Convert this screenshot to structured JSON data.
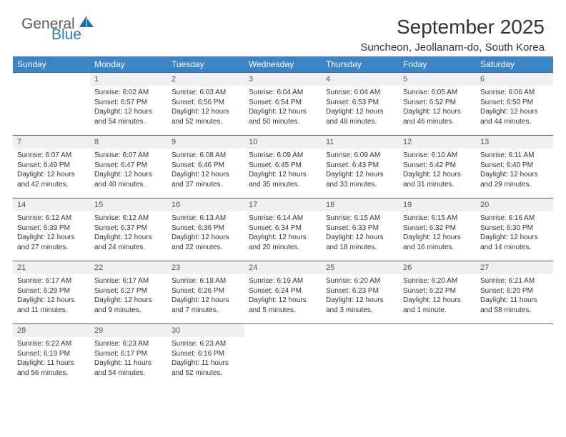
{
  "brand": {
    "word1": "General",
    "word2": "Blue"
  },
  "title": "September 2025",
  "location": "Suncheon, Jeollanam-do, South Korea",
  "colors": {
    "header_bg": "#3d84c6",
    "header_text": "#ffffff",
    "daynum_bg": "#eef0f1",
    "row_border": "#2e6ca4",
    "text": "#333333",
    "brand_gray": "#5a5a5a",
    "brand_blue": "#2f7bbf"
  },
  "weekdays": [
    "Sunday",
    "Monday",
    "Tuesday",
    "Wednesday",
    "Thursday",
    "Friday",
    "Saturday"
  ],
  "weeks": [
    [
      {
        "n": "",
        "sr": "",
        "ss": "",
        "dl": ""
      },
      {
        "n": "1",
        "sr": "Sunrise: 6:02 AM",
        "ss": "Sunset: 6:57 PM",
        "dl": "Daylight: 12 hours and 54 minutes."
      },
      {
        "n": "2",
        "sr": "Sunrise: 6:03 AM",
        "ss": "Sunset: 6:56 PM",
        "dl": "Daylight: 12 hours and 52 minutes."
      },
      {
        "n": "3",
        "sr": "Sunrise: 6:04 AM",
        "ss": "Sunset: 6:54 PM",
        "dl": "Daylight: 12 hours and 50 minutes."
      },
      {
        "n": "4",
        "sr": "Sunrise: 6:04 AM",
        "ss": "Sunset: 6:53 PM",
        "dl": "Daylight: 12 hours and 48 minutes."
      },
      {
        "n": "5",
        "sr": "Sunrise: 6:05 AM",
        "ss": "Sunset: 6:52 PM",
        "dl": "Daylight: 12 hours and 46 minutes."
      },
      {
        "n": "6",
        "sr": "Sunrise: 6:06 AM",
        "ss": "Sunset: 6:50 PM",
        "dl": "Daylight: 12 hours and 44 minutes."
      }
    ],
    [
      {
        "n": "7",
        "sr": "Sunrise: 6:07 AM",
        "ss": "Sunset: 6:49 PM",
        "dl": "Daylight: 12 hours and 42 minutes."
      },
      {
        "n": "8",
        "sr": "Sunrise: 6:07 AM",
        "ss": "Sunset: 6:47 PM",
        "dl": "Daylight: 12 hours and 40 minutes."
      },
      {
        "n": "9",
        "sr": "Sunrise: 6:08 AM",
        "ss": "Sunset: 6:46 PM",
        "dl": "Daylight: 12 hours and 37 minutes."
      },
      {
        "n": "10",
        "sr": "Sunrise: 6:09 AM",
        "ss": "Sunset: 6:45 PM",
        "dl": "Daylight: 12 hours and 35 minutes."
      },
      {
        "n": "11",
        "sr": "Sunrise: 6:09 AM",
        "ss": "Sunset: 6:43 PM",
        "dl": "Daylight: 12 hours and 33 minutes."
      },
      {
        "n": "12",
        "sr": "Sunrise: 6:10 AM",
        "ss": "Sunset: 6:42 PM",
        "dl": "Daylight: 12 hours and 31 minutes."
      },
      {
        "n": "13",
        "sr": "Sunrise: 6:11 AM",
        "ss": "Sunset: 6:40 PM",
        "dl": "Daylight: 12 hours and 29 minutes."
      }
    ],
    [
      {
        "n": "14",
        "sr": "Sunrise: 6:12 AM",
        "ss": "Sunset: 6:39 PM",
        "dl": "Daylight: 12 hours and 27 minutes."
      },
      {
        "n": "15",
        "sr": "Sunrise: 6:12 AM",
        "ss": "Sunset: 6:37 PM",
        "dl": "Daylight: 12 hours and 24 minutes."
      },
      {
        "n": "16",
        "sr": "Sunrise: 6:13 AM",
        "ss": "Sunset: 6:36 PM",
        "dl": "Daylight: 12 hours and 22 minutes."
      },
      {
        "n": "17",
        "sr": "Sunrise: 6:14 AM",
        "ss": "Sunset: 6:34 PM",
        "dl": "Daylight: 12 hours and 20 minutes."
      },
      {
        "n": "18",
        "sr": "Sunrise: 6:15 AM",
        "ss": "Sunset: 6:33 PM",
        "dl": "Daylight: 12 hours and 18 minutes."
      },
      {
        "n": "19",
        "sr": "Sunrise: 6:15 AM",
        "ss": "Sunset: 6:32 PM",
        "dl": "Daylight: 12 hours and 16 minutes."
      },
      {
        "n": "20",
        "sr": "Sunrise: 6:16 AM",
        "ss": "Sunset: 6:30 PM",
        "dl": "Daylight: 12 hours and 14 minutes."
      }
    ],
    [
      {
        "n": "21",
        "sr": "Sunrise: 6:17 AM",
        "ss": "Sunset: 6:29 PM",
        "dl": "Daylight: 12 hours and 11 minutes."
      },
      {
        "n": "22",
        "sr": "Sunrise: 6:17 AM",
        "ss": "Sunset: 6:27 PM",
        "dl": "Daylight: 12 hours and 9 minutes."
      },
      {
        "n": "23",
        "sr": "Sunrise: 6:18 AM",
        "ss": "Sunset: 6:26 PM",
        "dl": "Daylight: 12 hours and 7 minutes."
      },
      {
        "n": "24",
        "sr": "Sunrise: 6:19 AM",
        "ss": "Sunset: 6:24 PM",
        "dl": "Daylight: 12 hours and 5 minutes."
      },
      {
        "n": "25",
        "sr": "Sunrise: 6:20 AM",
        "ss": "Sunset: 6:23 PM",
        "dl": "Daylight: 12 hours and 3 minutes."
      },
      {
        "n": "26",
        "sr": "Sunrise: 6:20 AM",
        "ss": "Sunset: 6:22 PM",
        "dl": "Daylight: 12 hours and 1 minute."
      },
      {
        "n": "27",
        "sr": "Sunrise: 6:21 AM",
        "ss": "Sunset: 6:20 PM",
        "dl": "Daylight: 11 hours and 58 minutes."
      }
    ],
    [
      {
        "n": "28",
        "sr": "Sunrise: 6:22 AM",
        "ss": "Sunset: 6:19 PM",
        "dl": "Daylight: 11 hours and 56 minutes."
      },
      {
        "n": "29",
        "sr": "Sunrise: 6:23 AM",
        "ss": "Sunset: 6:17 PM",
        "dl": "Daylight: 11 hours and 54 minutes."
      },
      {
        "n": "30",
        "sr": "Sunrise: 6:23 AM",
        "ss": "Sunset: 6:16 PM",
        "dl": "Daylight: 11 hours and 52 minutes."
      },
      {
        "n": "",
        "sr": "",
        "ss": "",
        "dl": ""
      },
      {
        "n": "",
        "sr": "",
        "ss": "",
        "dl": ""
      },
      {
        "n": "",
        "sr": "",
        "ss": "",
        "dl": ""
      },
      {
        "n": "",
        "sr": "",
        "ss": "",
        "dl": ""
      }
    ]
  ]
}
